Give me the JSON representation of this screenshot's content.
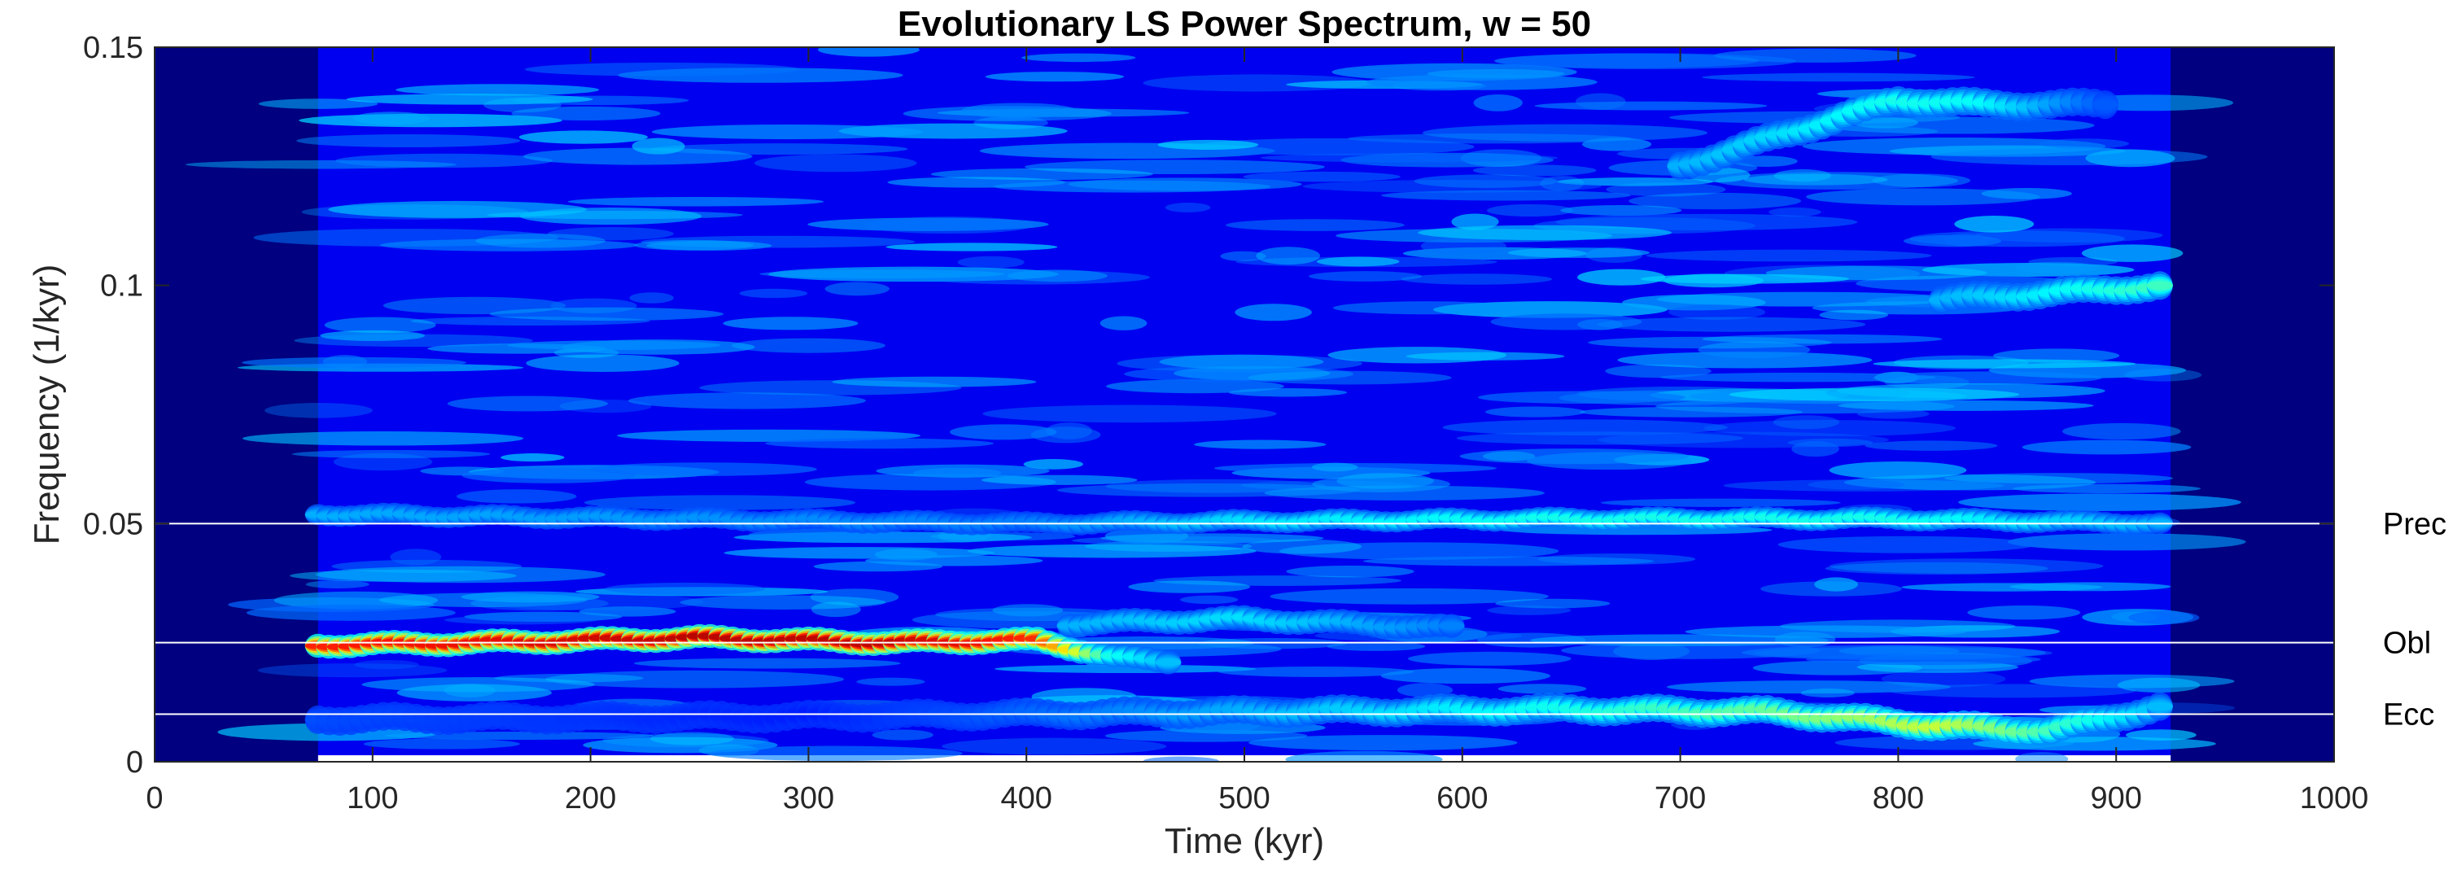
{
  "chart_data": {
    "type": "heatmap",
    "title": "Evolutionary LS Power Spectrum, w = 50",
    "xlabel": "Time (kyr)",
    "ylabel": "Frequency (1/kyr)",
    "xlim": [
      0,
      1000
    ],
    "ylim": [
      0,
      0.15
    ],
    "xticks": [
      0,
      100,
      200,
      300,
      400,
      500,
      600,
      700,
      800,
      900,
      1000
    ],
    "xtick_labels": [
      "0",
      "100",
      "200",
      "300",
      "400",
      "500",
      "600",
      "700",
      "800",
      "900",
      "1000"
    ],
    "yticks": [
      0,
      0.05,
      0.1,
      0.15
    ],
    "ytick_labels": [
      "0",
      "0.05",
      "0.1",
      "0.15"
    ],
    "data_extent_time": [
      75,
      925
    ],
    "colormap": "jet",
    "background_color": "#000080",
    "reference_lines": [
      {
        "name": "Prec",
        "frequency": 0.05
      },
      {
        "name": "Obl",
        "frequency": 0.025
      },
      {
        "name": "Ecc",
        "frequency": 0.01
      }
    ],
    "bands": [
      {
        "name": "Obliquity band",
        "points": [
          [
            75,
            0.0245,
            0.86
          ],
          [
            150,
            0.025,
            0.9
          ],
          [
            250,
            0.026,
            0.96
          ],
          [
            340,
            0.025,
            0.95
          ],
          [
            405,
            0.0255,
            0.85
          ],
          [
            440,
            0.022,
            0.4
          ],
          [
            470,
            0.021,
            0.3
          ]
        ],
        "spread": 0.0025
      },
      {
        "name": "Eccentricity band",
        "points": [
          [
            75,
            0.009,
            0.2
          ],
          [
            300,
            0.0095,
            0.15
          ],
          [
            500,
            0.0105,
            0.3
          ],
          [
            650,
            0.011,
            0.4
          ],
          [
            740,
            0.0105,
            0.48
          ],
          [
            820,
            0.0075,
            0.58
          ],
          [
            870,
            0.0065,
            0.45
          ],
          [
            925,
            0.012,
            0.3
          ]
        ],
        "spread": 0.003
      },
      {
        "name": "Precession band",
        "points": [
          [
            75,
            0.052,
            0.3
          ],
          [
            400,
            0.05,
            0.25
          ],
          [
            500,
            0.0505,
            0.35
          ],
          [
            650,
            0.051,
            0.4
          ],
          [
            800,
            0.051,
            0.4
          ],
          [
            925,
            0.05,
            0.3
          ]
        ],
        "spread": 0.0022
      },
      {
        "name": "Secondary band",
        "points": [
          [
            420,
            0.029,
            0.3
          ],
          [
            500,
            0.03,
            0.35
          ],
          [
            600,
            0.028,
            0.25
          ]
        ],
        "spread": 0.0025
      },
      {
        "name": "High-frequency band 1",
        "points": [
          [
            700,
            0.125,
            0.3
          ],
          [
            800,
            0.139,
            0.4
          ],
          [
            840,
            0.138,
            0.38
          ],
          [
            900,
            0.138,
            0.2
          ]
        ],
        "spread": 0.003
      },
      {
        "name": "High-frequency band 2",
        "points": [
          [
            820,
            0.097,
            0.3
          ],
          [
            925,
            0.1,
            0.45
          ]
        ],
        "spread": 0.003
      }
    ]
  }
}
